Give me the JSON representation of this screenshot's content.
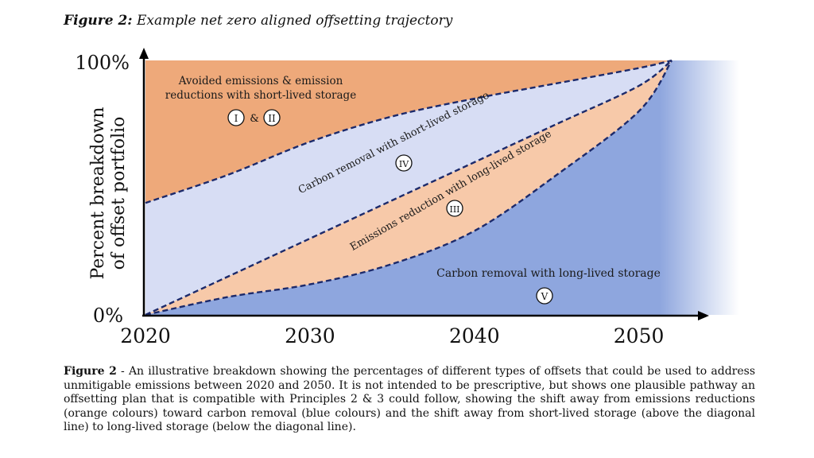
{
  "figure": {
    "label": "Figure 2:",
    "title": "Example net zero aligned offsetting trajectory"
  },
  "chart_data": {
    "type": "area",
    "ylabel_line1": "Percent breakdown",
    "ylabel_line2": "of offset portfolio",
    "ytick_top": "100%",
    "ytick_bottom": "0%",
    "x_ticks": [
      "2020",
      "2030",
      "2040",
      "2050"
    ],
    "x": [
      2020,
      2025,
      2030,
      2035,
      2040,
      2045,
      2050,
      2052
    ],
    "ylim": [
      0,
      100
    ],
    "boundaries_pct": {
      "upper_avoided_vs_removal_short": [
        44,
        55,
        68,
        78,
        85,
        91,
        97,
        100
      ],
      "diagonal": [
        0,
        15,
        30,
        45,
        60,
        75,
        90,
        100
      ],
      "lower_reduction_long_vs_removal_long": [
        0,
        7,
        12,
        20,
        33,
        55,
        80,
        100
      ]
    },
    "regions": [
      {
        "key": "avoided",
        "label_line1": "Avoided emissions & emission",
        "label_line2": "reductions with short-lived storage",
        "marker_a": "I",
        "marker_joiner": "&",
        "marker_b": "II",
        "color": "#EEA97A"
      },
      {
        "key": "removal_short",
        "label": "Carbon removal with short-lived storage",
        "marker": "IV",
        "color": "#D7DDF4"
      },
      {
        "key": "reduction_long",
        "label": "Emissions reduction with long-lived storage",
        "marker": "III",
        "color": "#F7C9A9"
      },
      {
        "key": "removal_long",
        "label": "Carbon removal with long-lived storage",
        "marker": "V",
        "color": "#8EA6DE"
      }
    ]
  },
  "caption": {
    "label": "Figure 2",
    "text": " - An illustrative breakdown showing the percentages of different types of offsets that could be used to address unmitigable emissions between 2020 and 2050. It is not intended to be prescriptive, but shows one plausible pathway an offsetting plan that is compatible with Principles 2 & 3 could follow, showing the shift away from emissions reductions (orange colours) toward carbon removal (blue colours) and the shift away from short-lived storage (above the diagonal line) to long-lived storage (below the diagonal line)."
  }
}
